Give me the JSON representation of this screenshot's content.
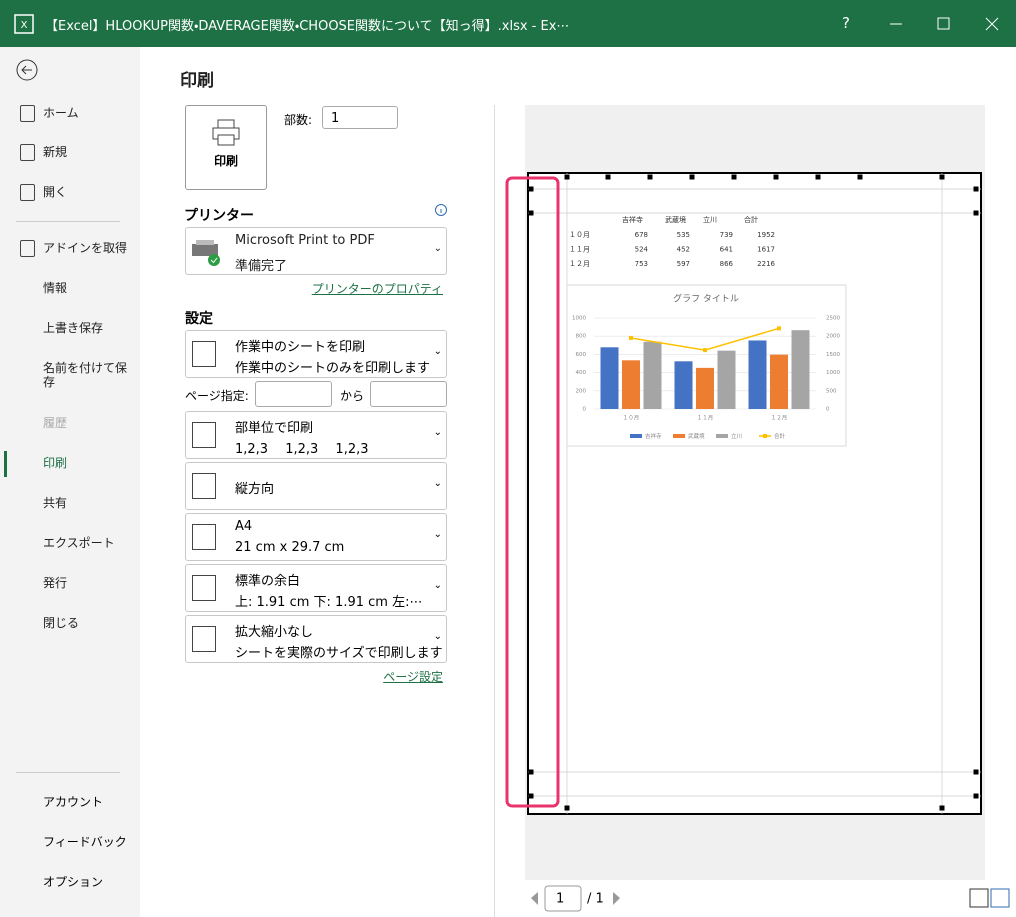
{
  "window": {
    "title": "【Excel】HLOOKUP関数・DAVERAGE関数・CHOOSE関数について【知っ得】.xlsx  -  Ex⋯",
    "help": "?"
  },
  "sidebar": {
    "items": [
      "ホーム",
      "新規",
      "開く",
      "アドインを取得",
      "情報",
      "上書き保存",
      "名前を付けて保存",
      "履歴",
      "印刷",
      "共有",
      "エクスポート",
      "発行",
      "閉じる"
    ],
    "selected": "印刷",
    "disabled": "履歴",
    "footer": [
      "アカウント",
      "フィードバック",
      "オプション"
    ]
  },
  "print": {
    "heading": "印刷",
    "button": "印刷",
    "copies_label": "部数:",
    "copies": "1",
    "printer_heading": "プリンター",
    "printer_name": "Microsoft Print to PDF",
    "printer_status": "準備完了",
    "printer_link": "プリンターのプロパティ",
    "settings_heading": "設定",
    "settings": [
      {
        "title": "作業中のシートを印刷",
        "detail": "作業中のシートのみを印刷します"
      },
      {
        "title": "部単位で印刷",
        "detail": "1,2,3　 1,2,3　 1,2,3"
      },
      {
        "title": "縦方向"
      },
      {
        "title": "A4",
        "detail": "21 cm x 29.7 cm"
      },
      {
        "title": "標準の余白",
        "detail": "上: 1.91 cm 下: 1.91 cm 左:⋯"
      },
      {
        "title": "拡大縮小なし",
        "detail": "シートを実際のサイズで印刷します"
      }
    ],
    "page_range_label": "ページ指定:",
    "page_range_to": "から",
    "page_setup_link": "ページ設定"
  },
  "preview": {
    "sheet": {
      "headers": [
        "吉祥寺",
        "武蔵境",
        "立川",
        "合計"
      ],
      "rows": [
        {
          "label": "１０月",
          "values": [
            678,
            535,
            739,
            1952
          ]
        },
        {
          "label": "１１月",
          "values": [
            524,
            452,
            641,
            1617
          ]
        },
        {
          "label": "１２月",
          "values": [
            753,
            597,
            866,
            2216
          ]
        }
      ]
    },
    "chart": {
      "title": "グラフ タイトル",
      "colors": [
        "#4472c4",
        "#ed7d31",
        "#a5a5a5",
        "#ffc000"
      ],
      "ylim": [
        0,
        1000
      ],
      "yticks": [
        0,
        200,
        400,
        600,
        800,
        1000
      ],
      "y2lim": [
        0,
        2500
      ],
      "y2ticks": [
        0,
        500,
        1000,
        1500,
        2000,
        2500
      ]
    },
    "page": "1",
    "page_total": "/ 1"
  }
}
